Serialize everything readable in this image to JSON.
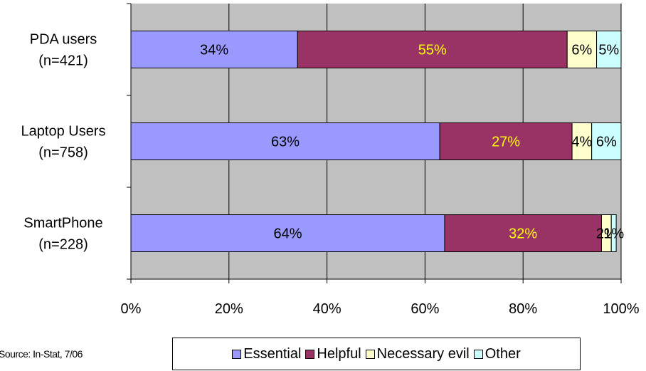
{
  "chart_data": {
    "type": "bar",
    "orientation": "horizontal",
    "stacked": true,
    "categories": [
      [
        "PDA users",
        "(n=421)"
      ],
      [
        "Laptop Users",
        "(n=758)"
      ],
      [
        "SmartPhone",
        "(n=228)"
      ]
    ],
    "series": [
      {
        "name": "Essential",
        "color": "#9999ff",
        "label_color": "#000000",
        "values": [
          34,
          63,
          64
        ],
        "labels": [
          "34%",
          "63%",
          "64%"
        ]
      },
      {
        "name": "Helpful",
        "color": "#993366",
        "label_color": "#ffff00",
        "values": [
          55,
          27,
          32
        ],
        "labels": [
          "55%",
          "27%",
          "32%"
        ]
      },
      {
        "name": "Necessary evil",
        "color": "#ffffcc",
        "label_color": "#000000",
        "values": [
          6,
          4,
          2
        ],
        "labels": [
          "6%",
          "4%",
          "2%"
        ]
      },
      {
        "name": "Other",
        "color": "#ccffff",
        "label_color": "#000000",
        "values": [
          5,
          6,
          1
        ],
        "labels": [
          "5%",
          "6%",
          "1%"
        ]
      }
    ],
    "xlim": [
      0,
      100
    ],
    "x_ticks": [
      "0%",
      "20%",
      "40%",
      "60%",
      "80%",
      "100%"
    ],
    "grid": true,
    "plot_background": "#c0c0c0",
    "legend_position": "bottom",
    "title": "",
    "xlabel": "",
    "ylabel": ""
  },
  "source": "Source: In-Stat, 7/06"
}
